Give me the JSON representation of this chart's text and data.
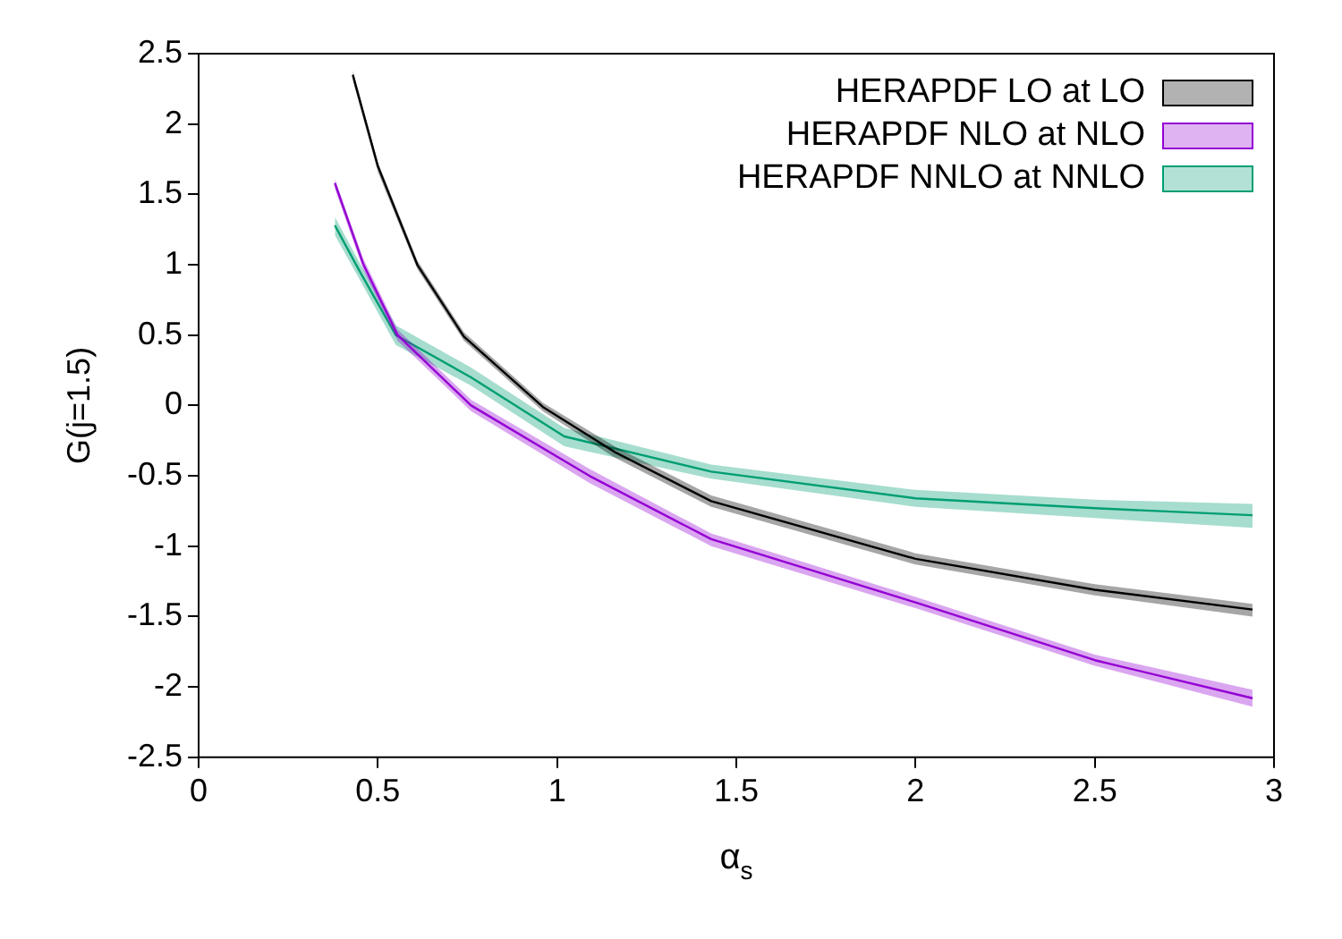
{
  "chart_data": {
    "type": "line",
    "xlabel": "α$_{s}$",
    "ylabel": "G(j=1.5)",
    "xlim": [
      0,
      3
    ],
    "xticks": [
      0,
      0.5,
      1,
      1.5,
      2,
      2.5,
      3
    ],
    "ylim": [
      -2.5,
      2.5
    ],
    "yticks": [
      -2.5,
      -2,
      -1.5,
      -1,
      -0.5,
      0,
      0.5,
      1,
      1.5,
      2,
      2.5
    ],
    "grid": false,
    "legend": "top right",
    "marker": "none",
    "line_style": "solid",
    "series": [
      {
        "name": "HERAPDF LO at LO",
        "color": "#000000",
        "x": [
          0.43,
          0.5,
          0.61,
          0.74,
          0.96,
          1.16,
          1.43,
          2.0,
          2.5,
          2.94
        ],
        "values": [
          2.35,
          1.7,
          1.0,
          0.49,
          -0.01,
          -0.33,
          -0.68,
          -1.09,
          -1.31,
          -1.45
        ],
        "lower": [
          2.31,
          1.66,
          0.97,
          0.46,
          -0.04,
          -0.37,
          -0.72,
          -1.13,
          -1.35,
          -1.5
        ],
        "upper": [
          2.38,
          1.73,
          1.03,
          0.52,
          0.02,
          -0.29,
          -0.64,
          -1.05,
          -1.27,
          -1.41
        ]
      },
      {
        "name": "HERAPDF NLO at NLO",
        "color": "#9400d3",
        "x": [
          0.38,
          0.46,
          0.555,
          0.76,
          1.09,
          1.43,
          2.0,
          2.5,
          2.94
        ],
        "values": [
          1.58,
          1.0,
          0.5,
          0.0,
          -0.5,
          -0.95,
          -1.4,
          -1.81,
          -2.08
        ],
        "lower": [
          1.54,
          0.96,
          0.46,
          -0.04,
          -0.55,
          -1.0,
          -1.44,
          -1.85,
          -2.14
        ],
        "upper": [
          1.61,
          1.04,
          0.54,
          0.04,
          -0.45,
          -0.91,
          -1.36,
          -1.77,
          -2.02
        ]
      },
      {
        "name": "HERAPDF NNLO at NNLO",
        "color": "#009e73",
        "x": [
          0.38,
          0.45,
          0.55,
          0.76,
          1.02,
          1.43,
          2.0,
          2.5,
          2.94
        ],
        "values": [
          1.28,
          0.95,
          0.5,
          0.2,
          -0.22,
          -0.47,
          -0.66,
          -0.73,
          -0.78
        ],
        "lower": [
          1.21,
          0.89,
          0.43,
          0.14,
          -0.29,
          -0.52,
          -0.72,
          -0.8,
          -0.87
        ],
        "upper": [
          1.34,
          1.01,
          0.57,
          0.27,
          -0.16,
          -0.42,
          -0.6,
          -0.67,
          -0.7
        ]
      }
    ]
  }
}
